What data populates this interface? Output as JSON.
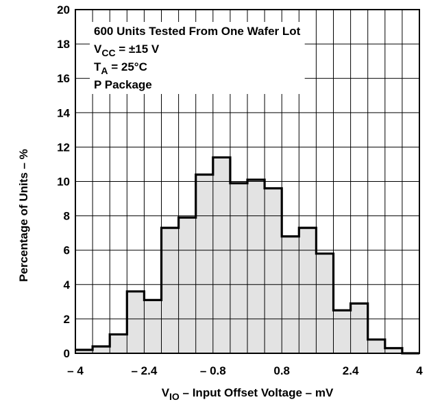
{
  "chart_data": {
    "type": "bar",
    "title": "",
    "xlabel": "VIO – Input Offset Voltage – mV",
    "xlabel_parts": {
      "main": "V",
      "sub": "IO",
      "rest": " – Input Offset Voltage – mV"
    },
    "ylabel": "Percentage of Units – %",
    "xlim": [
      -4,
      4
    ],
    "ylim": [
      0,
      20
    ],
    "x_ticks": [
      {
        "value": -4,
        "label": "– 4"
      },
      {
        "value": -2.4,
        "label": "– 2.4"
      },
      {
        "value": -0.8,
        "label": "– 0.8"
      },
      {
        "value": 0.8,
        "label": "0.8"
      },
      {
        "value": 2.4,
        "label": "2.4"
      },
      {
        "value": 4,
        "label": "4"
      }
    ],
    "y_ticks": [
      0,
      2,
      4,
      6,
      8,
      10,
      12,
      14,
      16,
      18,
      20
    ],
    "grid": true,
    "bin_width": 0.4,
    "bins": [
      {
        "x_start": -4.0,
        "value": 0.2
      },
      {
        "x_start": -3.6,
        "value": 0.4
      },
      {
        "x_start": -3.2,
        "value": 1.1
      },
      {
        "x_start": -2.8,
        "value": 3.6
      },
      {
        "x_start": -2.4,
        "value": 3.1
      },
      {
        "x_start": -2.0,
        "value": 7.3
      },
      {
        "x_start": -1.6,
        "value": 7.9
      },
      {
        "x_start": -1.2,
        "value": 10.4
      },
      {
        "x_start": -0.8,
        "value": 11.4
      },
      {
        "x_start": -0.4,
        "value": 9.9
      },
      {
        "x_start": 0.0,
        "value": 10.1
      },
      {
        "x_start": 0.4,
        "value": 9.6
      },
      {
        "x_start": 0.8,
        "value": 6.8
      },
      {
        "x_start": 1.2,
        "value": 7.3
      },
      {
        "x_start": 1.6,
        "value": 5.8
      },
      {
        "x_start": 2.0,
        "value": 2.5
      },
      {
        "x_start": 2.4,
        "value": 2.9
      },
      {
        "x_start": 2.8,
        "value": 0.8
      },
      {
        "x_start": 3.2,
        "value": 0.3
      },
      {
        "x_start": 3.6,
        "value": 0.0
      }
    ],
    "annotations": [
      {
        "id": "lot",
        "parts": [
          {
            "text": "600 Units Tested From One Wafer Lot"
          }
        ]
      },
      {
        "id": "vcc",
        "parts": [
          {
            "text": "V"
          },
          {
            "text": "CC",
            "sub": true
          },
          {
            "text": " = ±15 V"
          }
        ]
      },
      {
        "id": "ta",
        "parts": [
          {
            "text": "T"
          },
          {
            "text": "A",
            "sub": true
          },
          {
            "text": " = 25°C"
          }
        ]
      },
      {
        "id": "pkg",
        "parts": [
          {
            "text": "P Package"
          }
        ]
      }
    ],
    "colors": {
      "fill": "#e3e3e3",
      "outline": "#000000",
      "grid": "#000000"
    }
  }
}
